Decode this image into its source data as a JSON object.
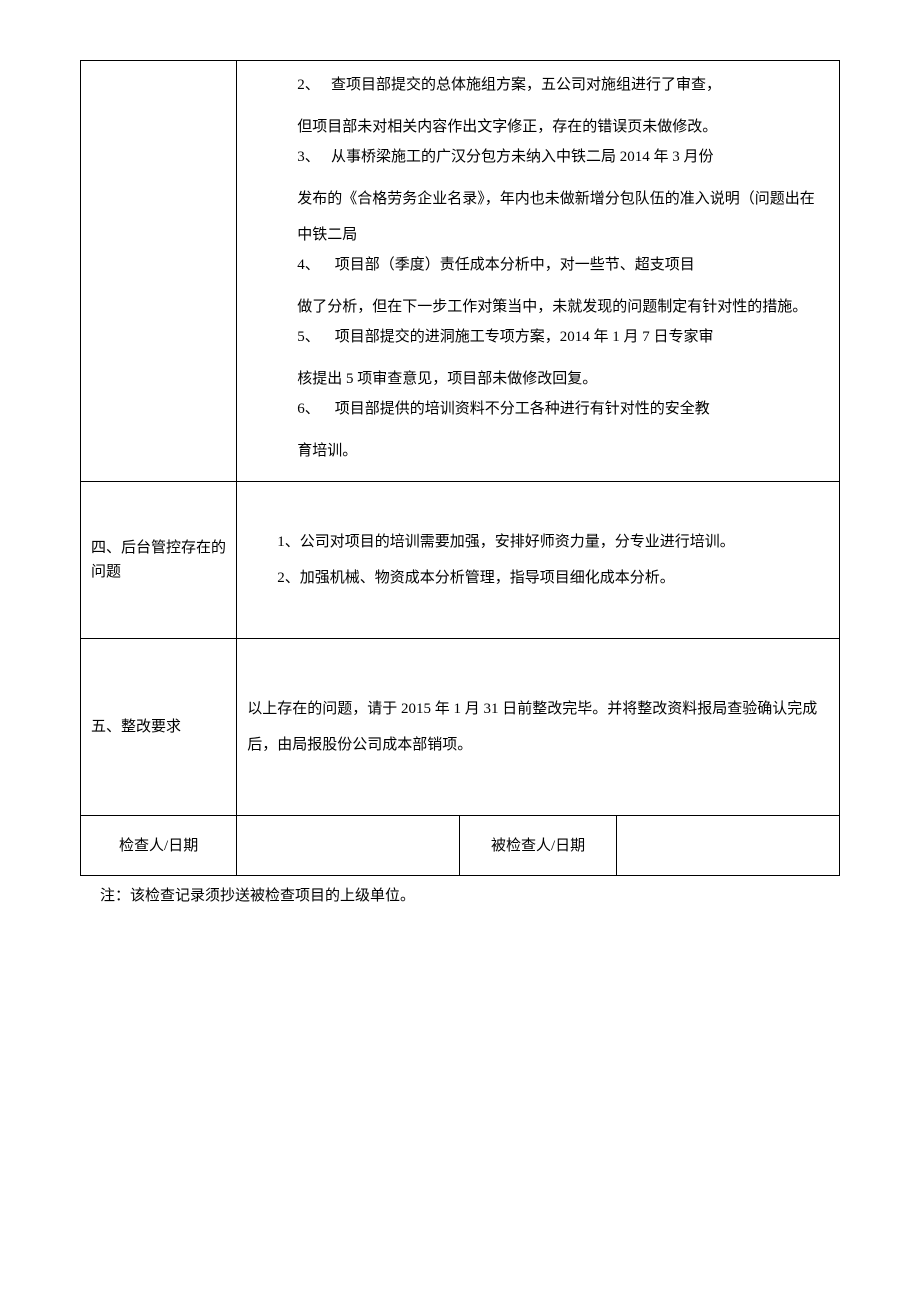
{
  "section3": {
    "items": [
      {
        "num": "2、",
        "lead": "查项目部提交的总体施组方案，五公司对施组进行了审查，",
        "cont": "但项目部未对相关内容作出文字修正，存在的错误页未做修改。"
      },
      {
        "num": "3、",
        "lead": "从事桥梁施工的广汉分包方未纳入中铁二局 2014 年 3 月份",
        "cont": "发布的《合格劳务企业名录》，年内也未做新增分包队伍的准入说明（问题出在中铁二局"
      },
      {
        "num": "4、",
        "lead": "项目部（季度）责任成本分析中，对一些节、超支项目",
        "cont": "做了分析，但在下一步工作对策当中，未就发现的问题制定有针对性的措施。"
      },
      {
        "num": "5、",
        "lead": "项目部提交的进洞施工专项方案，2014 年 1 月 7 日专家审",
        "cont": "核提出 5 项审查意见，项目部未做修改回复。"
      },
      {
        "num": "6、",
        "lead": "项目部提供的培训资料不分工各种进行有针对性的安全教",
        "cont": "育培训。"
      }
    ]
  },
  "section4": {
    "label": "四、后台管控存在的问题",
    "line1": "1、公司对项目的培训需要加强，安排好师资力量，分专业进行培训。",
    "line2": "2、加强机械、物资成本分析管理，指导项目细化成本分析。"
  },
  "section5": {
    "label": "五、整改要求",
    "text": "以上存在的问题，请于 2015 年 1 月 31 日前整改完毕。并将整改资料报局查验确认完成后，由局报股份公司成本部销项。"
  },
  "signatures": {
    "inspector_label": "检查人/日期",
    "inspector_value": "",
    "inspected_label": "被检查人/日期",
    "inspected_value": ""
  },
  "footnote": "注：该检查记录须抄送被检查项目的上级单位。",
  "colors": {
    "border": "#000000",
    "background": "#ffffff",
    "text": "#000000"
  },
  "typography": {
    "body_fontsize": 15,
    "font_family": "SimSun"
  }
}
